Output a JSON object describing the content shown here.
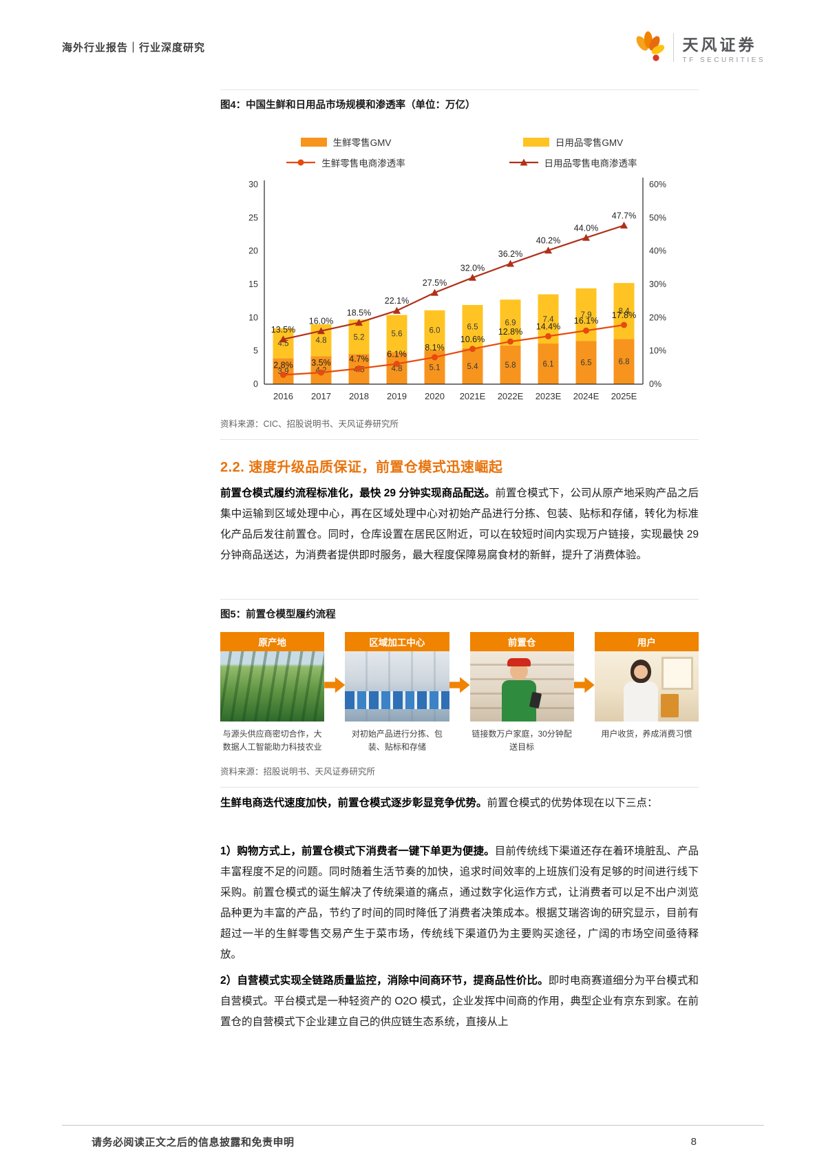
{
  "header": {
    "report_type": "海外行业报告｜行业深度研究",
    "brand_name": "天风证券",
    "brand_sub": "TF SECURITIES"
  },
  "colors": {
    "accent_orange": "#f08300",
    "heading_orange": "#e8730c",
    "bar_fresh": "#f7941d",
    "bar_daily": "#ffc423",
    "line_fresh": "#e64a0e",
    "line_daily": "#b03018"
  },
  "figure4": {
    "title": "图4：中国生鲜和日用品市场规模和渗透率（单位：万亿）",
    "source": "资料来源：CIC、招股说明书、天风证券研究所"
  },
  "chart_data": {
    "type": "bar",
    "subtype": "stacked-bar-with-lines",
    "title": "中国生鲜和日用品市场规模和渗透率（单位：万亿）",
    "categories": [
      "2016",
      "2017",
      "2018",
      "2019",
      "2020",
      "2021E",
      "2022E",
      "2023E",
      "2024E",
      "2025E"
    ],
    "series": [
      {
        "name": "生鲜零售GMV",
        "type": "bar",
        "stack": true,
        "color": "#f7941d",
        "values": [
          3.9,
          4.2,
          4.5,
          4.8,
          5.1,
          5.4,
          5.8,
          6.1,
          6.5,
          6.8
        ]
      },
      {
        "name": "日用品零售GMV",
        "type": "bar",
        "stack": true,
        "color": "#ffc423",
        "values": [
          4.5,
          4.8,
          5.2,
          5.6,
          6.0,
          6.5,
          6.9,
          7.4,
          7.9,
          8.4
        ]
      },
      {
        "name": "生鲜零售电商渗透率",
        "type": "line",
        "marker": "circle",
        "axis": "right",
        "color": "#e64a0e",
        "values": [
          2.8,
          3.5,
          4.7,
          6.1,
          8.1,
          10.6,
          12.8,
          14.4,
          16.1,
          17.8
        ]
      },
      {
        "name": "日用品零售电商渗透率",
        "type": "line",
        "marker": "triangle",
        "axis": "right",
        "color": "#b03018",
        "values": [
          13.5,
          16.0,
          18.5,
          22.1,
          27.5,
          32.0,
          36.2,
          40.2,
          44.0,
          47.7
        ]
      }
    ],
    "left_axis": {
      "min": 0,
      "max": 30,
      "step": 5
    },
    "right_axis": {
      "min": 0,
      "max": 60,
      "step": 10,
      "suffix": "%"
    },
    "grid": false,
    "legend_position": "top"
  },
  "section22": {
    "heading": "2.2. 速度升级品质保证，前置仓模式迅速崛起",
    "p1_bold": "前置仓模式履约流程标准化，最快 29 分钟实现商品配送。",
    "p1_text": "前置仓模式下，公司从原产地采购产品之后集中运输到区域处理中心，再在区域处理中心对初始产品进行分拣、包装、贴标和存储，转化为标准化产品后发往前置仓。同时，仓库设置在居民区附近，可以在较短时间内实现万户链接，实现最快 29 分钟商品送达，为消费者提供即时服务，最大程度保障易腐食材的新鲜，提升了消费体验。"
  },
  "figure5": {
    "title": "图5：前置仓模型履约流程",
    "source": "资料来源：招股说明书、天风证券研究所",
    "steps": [
      {
        "label": "原产地",
        "caption": "与源头供应商密切合作，大数据人工智能助力科技农业"
      },
      {
        "label": "区域加工中心",
        "caption": "对初始产品进行分拣、包装、贴标和存储"
      },
      {
        "label": "前置仓",
        "caption": "链接数万户家庭，30分钟配送目标"
      },
      {
        "label": "用户",
        "caption": "用户收货，养成消费习惯"
      }
    ]
  },
  "body": {
    "p2_bold": "生鲜电商迭代速度加快，前置仓模式逐步彰显竞争优势。",
    "p2_text": "前置仓模式的优势体现在以下三点：",
    "p3_bold": "1）购物方式上，前置仓模式下消费者一键下单更为便捷。",
    "p3_text": "目前传统线下渠道还存在着环境脏乱、产品丰富程度不足的问题。同时随着生活节奏的加快，追求时间效率的上班族们没有足够的时间进行线下采购。前置仓模式的诞生解决了传统渠道的痛点，通过数字化运作方式，让消费者可以足不出户浏览品种更为丰富的产品，节约了时间的同时降低了消费者决策成本。根据艾瑞咨询的研究显示，目前有超过一半的生鲜零售交易产生于菜市场，传统线下渠道仍为主要购买途径，广阔的市场空间亟待释放。",
    "p4_bold": "2）自营模式实现全链路质量监控，消除中间商环节，提商品性价比。",
    "p4_text": "即时电商赛道细分为平台模式和自营模式。平台模式是一种轻资产的 O2O 模式，企业发挥中间商的作用，典型企业有京东到家。在前置仓的自营模式下企业建立自己的供应链生态系统，直接从上"
  },
  "footer": {
    "disclaimer": "请务必阅读正文之后的信息披露和免责申明",
    "page": "8"
  }
}
